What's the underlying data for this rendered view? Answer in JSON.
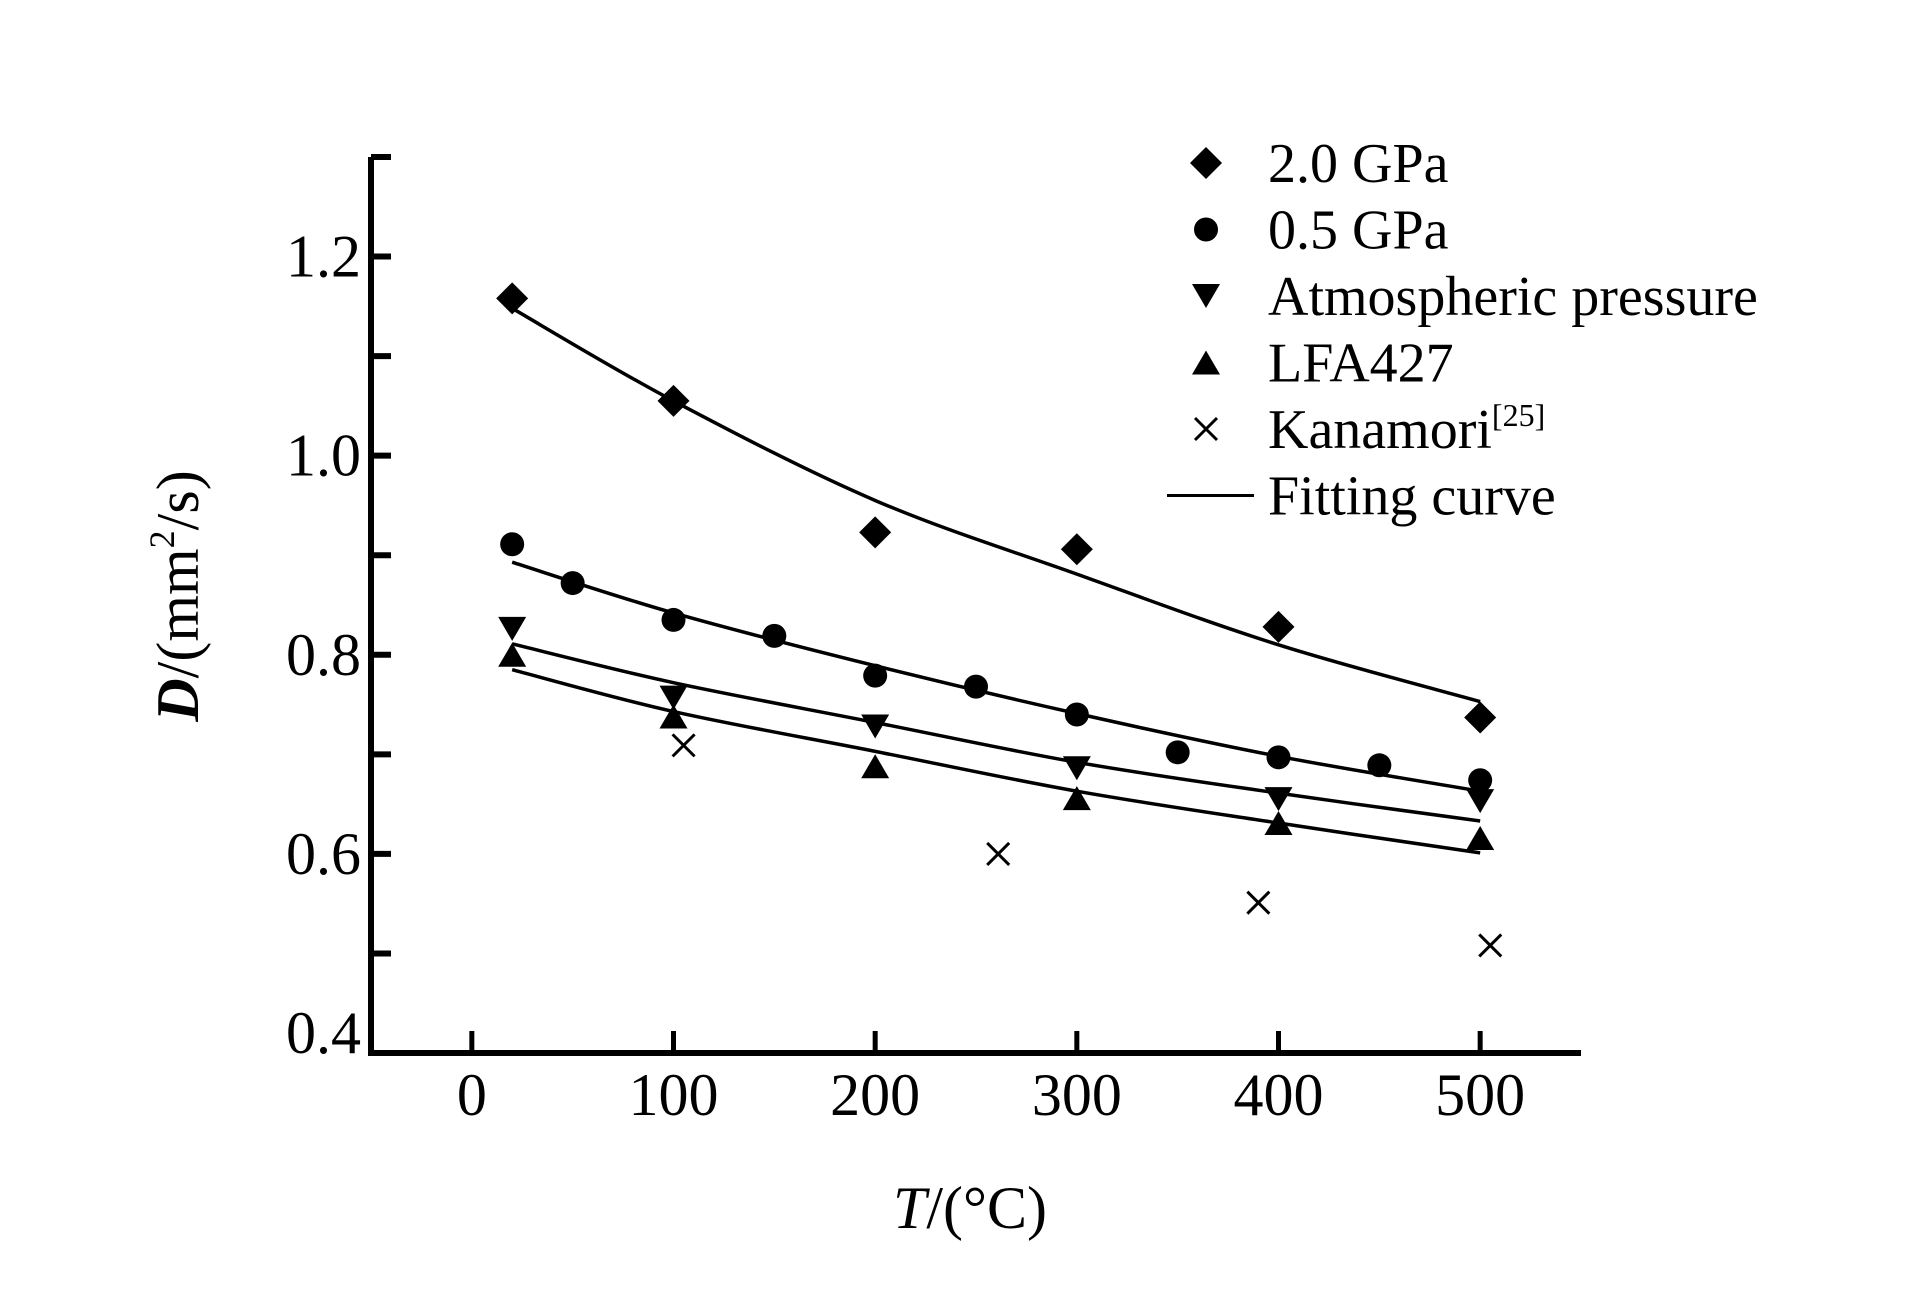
{
  "chart_data": {
    "type": "scatter",
    "title": "",
    "xlabel": {
      "var": "T",
      "unit": "/(°C)"
    },
    "ylabel": {
      "var": "D",
      "unit_pre": "/(mm",
      "unit_sup": "2",
      "unit_post": "/s)"
    },
    "xlim": [
      -50,
      550
    ],
    "ylim": [
      0.4,
      1.3
    ],
    "xticks": [
      0,
      100,
      200,
      300,
      400,
      500
    ],
    "xtick_labels": [
      "0",
      "100",
      "200",
      "300",
      "400",
      "500"
    ],
    "yticks_major": [
      0.4,
      0.6,
      0.8,
      1.0,
      1.2
    ],
    "ytick_labels": [
      "0.4",
      "0.6",
      "0.8",
      "1.0",
      "1.2"
    ],
    "yticks_minor": [
      0.5,
      0.7,
      0.9,
      1.1,
      1.3
    ],
    "grid": false,
    "legend_position": "top-right",
    "series": [
      {
        "name": "2.0 GPa",
        "marker": "diamond",
        "x": [
          20,
          100,
          200,
          300,
          400,
          500
        ],
        "y": [
          1.158,
          1.055,
          0.923,
          0.906,
          0.828,
          0.737
        ]
      },
      {
        "name": "0.5 GPa",
        "marker": "circle",
        "x": [
          20,
          50,
          100,
          150,
          200,
          250,
          300,
          350,
          400,
          450,
          500
        ],
        "y": [
          0.911,
          0.872,
          0.835,
          0.819,
          0.779,
          0.768,
          0.74,
          0.702,
          0.697,
          0.689,
          0.674
        ]
      },
      {
        "name": "Atmospheric pressure",
        "marker": "triangle-down",
        "x": [
          20,
          100,
          200,
          300,
          400,
          500
        ],
        "y": [
          0.826,
          0.757,
          0.728,
          0.686,
          0.655,
          0.653
        ]
      },
      {
        "name": "LFA427",
        "marker": "triangle-up",
        "x": [
          20,
          100,
          200,
          300,
          400,
          500
        ],
        "y": [
          0.8,
          0.738,
          0.688,
          0.656,
          0.631,
          0.616
        ]
      },
      {
        "name": "Kanamori",
        "name_sup": "[25]",
        "marker": "cross",
        "x": [
          105,
          261,
          390,
          505
        ],
        "y": [
          0.709,
          0.6,
          0.551,
          0.508
        ]
      }
    ],
    "fitting_curves": {
      "name": "Fitting curve",
      "curves": [
        {
          "for": "2.0 GPa",
          "x": [
            20,
            100,
            200,
            300,
            400,
            500
          ],
          "y": [
            1.148,
            1.055,
            0.955,
            0.881,
            0.81,
            0.753
          ]
        },
        {
          "for": "0.5 GPa",
          "x": [
            20,
            100,
            200,
            300,
            400,
            500
          ],
          "y": [
            0.893,
            0.842,
            0.789,
            0.741,
            0.698,
            0.663
          ]
        },
        {
          "for": "Atmospheric pressure",
          "x": [
            20,
            100,
            200,
            300,
            400,
            500
          ],
          "y": [
            0.811,
            0.772,
            0.732,
            0.692,
            0.661,
            0.633
          ]
        },
        {
          "for": "LFA427",
          "x": [
            20,
            100,
            200,
            300,
            400,
            500
          ],
          "y": [
            0.785,
            0.743,
            0.703,
            0.663,
            0.631,
            0.601
          ]
        }
      ]
    },
    "legend": [
      {
        "label": "2.0 GPa",
        "marker": "diamond"
      },
      {
        "label": "0.5 GPa",
        "marker": "circle"
      },
      {
        "label": "Atmospheric pressure",
        "marker": "triangle-down"
      },
      {
        "label": "LFA427",
        "marker": "triangle-up"
      },
      {
        "label": "Kanamori",
        "sup": "[25]",
        "marker": "cross"
      },
      {
        "label": "Fitting curve",
        "marker": "line"
      }
    ]
  }
}
